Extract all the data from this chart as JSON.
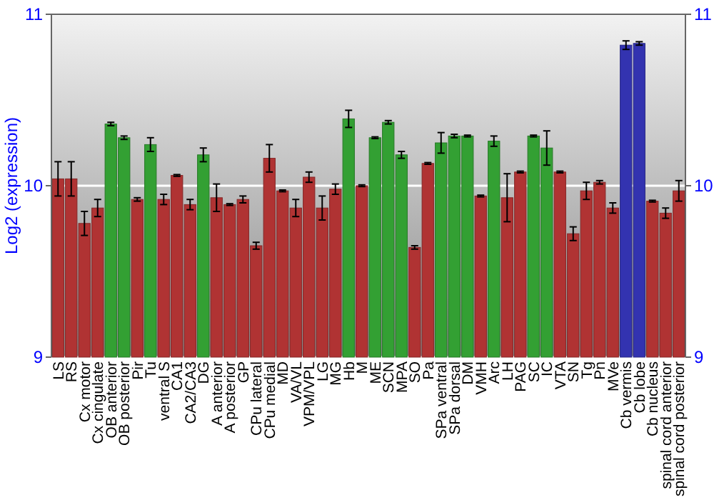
{
  "chart_data": {
    "type": "bar",
    "ylabel": "Log2 (expression)",
    "categories": [
      "LS",
      "RS",
      "Cx motor",
      "Cx cingulate",
      "OB anterior",
      "OB posterior",
      "Pir",
      "Tu",
      "ventral S",
      "CA1",
      "CA2/CA3",
      "DG",
      "A anterior",
      "A posterior",
      "GP",
      "CPu lateral",
      "CPu medial",
      "MD",
      "VA/VL",
      "VPM/VPL",
      "LG",
      "MG",
      "Hb",
      "M",
      "ME",
      "SCN",
      "MPA",
      "SO",
      "Pa",
      "SPa ventral",
      "SPa dorsal",
      "DM",
      "VMH",
      "Arc",
      "LH",
      "PAG",
      "SC",
      "IC",
      "VTA",
      "SN",
      "Tg",
      "Pn",
      "MVe",
      "Cb vermis",
      "Cb lobe",
      "Cb nucleus",
      "spinal cord anterior",
      "spinal cord posterior"
    ],
    "values": [
      10.04,
      10.04,
      9.78,
      9.87,
      10.36,
      10.28,
      9.92,
      10.24,
      9.92,
      10.06,
      9.89,
      10.18,
      9.93,
      9.89,
      9.92,
      9.65,
      10.16,
      9.97,
      9.87,
      10.05,
      9.87,
      9.98,
      10.39,
      10.0,
      10.28,
      10.37,
      10.18,
      9.64,
      10.13,
      10.25,
      10.29,
      10.29,
      9.94,
      10.26,
      9.93,
      10.08,
      10.29,
      10.22,
      10.08,
      9.72,
      9.97,
      10.02,
      9.87,
      10.82,
      10.83,
      9.91,
      9.84,
      9.97
    ],
    "errors": [
      0.1,
      0.1,
      0.07,
      0.05,
      0.01,
      0.01,
      0.01,
      0.04,
      0.03,
      0.005,
      0.03,
      0.04,
      0.08,
      0.005,
      0.02,
      0.02,
      0.08,
      0.005,
      0.05,
      0.03,
      0.07,
      0.03,
      0.05,
      0.005,
      0.005,
      0.01,
      0.02,
      0.01,
      0.005,
      0.06,
      0.01,
      0.005,
      0.005,
      0.03,
      0.14,
      0.005,
      0.005,
      0.1,
      0.005,
      0.04,
      0.05,
      0.01,
      0.03,
      0.025,
      0.01,
      0.005,
      0.03,
      0.06
    ],
    "colors": [
      "#b03333",
      "#b03333",
      "#b03333",
      "#b03333",
      "#33a033",
      "#33a033",
      "#b03333",
      "#33a033",
      "#b03333",
      "#b03333",
      "#b03333",
      "#33a033",
      "#b03333",
      "#b03333",
      "#b03333",
      "#b03333",
      "#b03333",
      "#b03333",
      "#b03333",
      "#b03333",
      "#b03333",
      "#b03333",
      "#33a033",
      "#b03333",
      "#33a033",
      "#33a033",
      "#33a033",
      "#b03333",
      "#b03333",
      "#33a033",
      "#33a033",
      "#33a033",
      "#b03333",
      "#33a033",
      "#b03333",
      "#b03333",
      "#33a033",
      "#33a033",
      "#b03333",
      "#b03333",
      "#b03333",
      "#b03333",
      "#b03333",
      "#3333b0",
      "#3333b0",
      "#b03333",
      "#b03333",
      "#b03333"
    ],
    "ylim": [
      9,
      11
    ],
    "yticks": [
      9,
      10,
      11
    ],
    "y2lim": [
      9,
      11
    ],
    "y2ticks": [
      9,
      10,
      11
    ],
    "grid": "y"
  }
}
